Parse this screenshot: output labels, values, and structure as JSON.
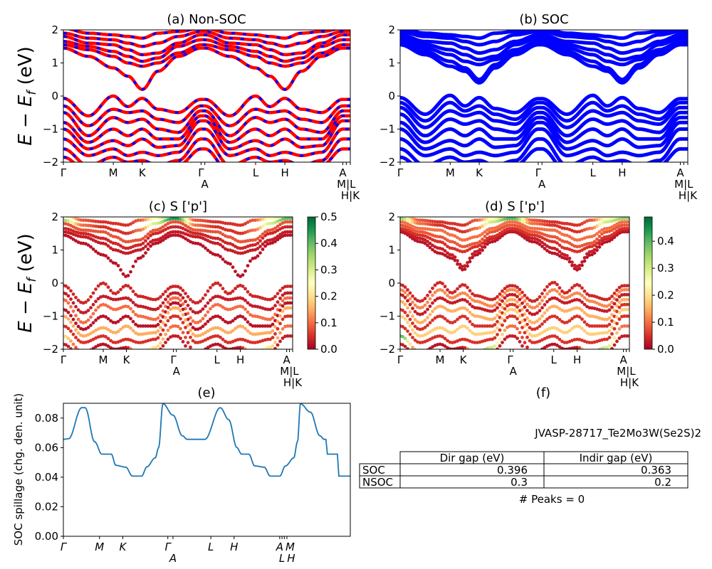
{
  "figure": {
    "ylabel_main": "E − E",
    "ylabel_sub": "f",
    "ylabel_unit": " (eV)",
    "band_line_colors": {
      "nonsoc_solid": "#ff0000",
      "nonsoc_dash": "#0000ff",
      "soc": "#0000ff"
    },
    "spillage_color": "#1f77b4",
    "colormap": "RdYlGn"
  },
  "table_panel": {
    "title": "(f)",
    "material": "JVASP-28717_Te2Mo3W(Se2S)2",
    "columns": [
      "",
      "Dir gap (eV)",
      "Indir gap (eV)"
    ],
    "rows": [
      {
        "label": "SOC",
        "dir_gap": "0.396",
        "indir_gap": "0.363"
      },
      {
        "label": "NSOC",
        "dir_gap": "0.3",
        "indir_gap": "0.2"
      }
    ],
    "peaks_text": "# Peaks = 0"
  },
  "chart_data": [
    {
      "id": "a",
      "type": "line",
      "title": "(a) Non-SOC",
      "ylabel": "E − E_f (eV)",
      "ylim": [
        -2,
        2
      ],
      "yticks": [
        2,
        1,
        0,
        -1,
        -2
      ],
      "ytick_labels": [
        "2",
        "1",
        "0",
        "−1",
        "−2"
      ],
      "xtick_positions": [
        0,
        0.174,
        0.275,
        0.48,
        0.493,
        0.67,
        0.772,
        0.974,
        0.986,
        1.0
      ],
      "xtick_labels": [
        "Γ",
        "M",
        "K",
        "Γ",
        "A",
        "L",
        "H",
        "A",
        "M|L",
        "H|K"
      ],
      "k": [
        0,
        0.087,
        0.174,
        0.225,
        0.275,
        0.33,
        0.4,
        0.48,
        0.493,
        0.58,
        0.67,
        0.72,
        0.772,
        0.83,
        0.9,
        0.974,
        1.0
      ],
      "bands": [
        [
          1.45,
          1.2,
          0.85,
          0.6,
          0.2,
          0.75,
          1.2,
          1.45,
          1.45,
          1.2,
          0.85,
          0.6,
          0.2,
          0.75,
          1.2,
          1.45,
          1.45
        ],
        [
          1.55,
          1.4,
          1.2,
          1.0,
          0.9,
          1.0,
          1.3,
          1.55,
          1.55,
          1.4,
          1.2,
          1.0,
          0.9,
          1.0,
          1.3,
          1.55,
          1.55
        ],
        [
          1.65,
          1.5,
          1.35,
          1.2,
          1.05,
          1.15,
          1.5,
          1.7,
          1.7,
          1.5,
          1.35,
          1.2,
          1.05,
          1.15,
          1.5,
          1.7,
          1.7
        ],
        [
          1.8,
          1.6,
          1.55,
          1.4,
          1.25,
          1.3,
          1.6,
          1.85,
          1.85,
          1.6,
          1.55,
          1.4,
          1.25,
          1.3,
          1.6,
          1.85,
          1.85
        ],
        [
          1.9,
          1.75,
          1.7,
          1.6,
          1.5,
          1.6,
          1.8,
          1.95,
          1.95,
          1.75,
          1.7,
          1.6,
          1.5,
          1.6,
          1.8,
          1.95,
          1.95
        ],
        [
          2.05,
          1.9,
          1.85,
          1.8,
          1.75,
          1.9,
          1.95,
          2.05,
          2.05,
          1.9,
          1.85,
          1.8,
          1.75,
          1.9,
          1.95,
          2.05,
          2.05
        ],
        [
          -0.07,
          -0.6,
          0.0,
          -0.32,
          -0.07,
          -0.4,
          -0.5,
          -0.1,
          -0.1,
          -0.6,
          0.0,
          -0.32,
          -0.07,
          -0.4,
          -0.5,
          -0.1,
          -0.1
        ],
        [
          -0.3,
          -0.9,
          -0.4,
          -0.5,
          -0.45,
          -0.7,
          -0.8,
          -0.3,
          -0.3,
          -0.9,
          -0.4,
          -0.5,
          -0.45,
          -0.7,
          -0.8,
          -0.3,
          -0.3
        ],
        [
          -0.5,
          -1.2,
          -0.65,
          -0.8,
          -0.7,
          -1.0,
          -1.1,
          -0.45,
          -0.45,
          -1.2,
          -0.65,
          -0.8,
          -0.7,
          -1.0,
          -1.1,
          -0.45,
          -0.45
        ],
        [
          -0.8,
          -1.4,
          -1.0,
          -1.2,
          -1.0,
          -1.3,
          -1.3,
          -0.6,
          -0.6,
          -1.4,
          -1.0,
          -1.2,
          -1.0,
          -1.3,
          -1.3,
          -0.6,
          -0.6
        ],
        [
          -1.0,
          -1.6,
          -1.35,
          -1.5,
          -1.3,
          -1.55,
          -1.5,
          -0.75,
          -0.75,
          -1.6,
          -1.35,
          -1.5,
          -1.3,
          -1.55,
          -1.5,
          -0.75,
          -0.75
        ],
        [
          -1.3,
          -1.8,
          -1.6,
          -1.8,
          -1.7,
          -1.8,
          -1.7,
          -1.0,
          -1.0,
          -1.8,
          -1.6,
          -1.8,
          -1.7,
          -1.8,
          -1.7,
          -1.0,
          -1.0
        ],
        [
          -1.6,
          -2.1,
          -1.85,
          -2.0,
          -1.95,
          -2.1,
          -1.95,
          -1.3,
          -1.3,
          -2.1,
          -1.85,
          -2.0,
          -1.95,
          -2.1,
          -1.95,
          -1.3,
          -1.3
        ],
        [
          -1.85,
          -2.3,
          -2.1,
          -2.2,
          -2.2,
          -2.3,
          -2.1,
          -1.6,
          -1.6,
          -2.3,
          -2.1,
          -2.2,
          -2.2,
          -2.3,
          -2.1,
          -1.6,
          -1.6
        ]
      ]
    },
    {
      "id": "b",
      "type": "line",
      "title": "(b) SOC",
      "ylim": [
        -2,
        2
      ],
      "yticks": [
        2,
        1,
        0,
        -1,
        -2
      ],
      "ytick_labels": [
        "2",
        "1",
        "0",
        "−1",
        "−2"
      ],
      "xtick_positions": [
        0,
        0.174,
        0.275,
        0.48,
        0.493,
        0.67,
        0.772,
        0.974,
        0.986,
        1.0
      ],
      "xtick_labels": [
        "Γ",
        "M",
        "K",
        "Γ",
        "A",
        "L",
        "H",
        "A",
        "M|L",
        "H|K"
      ],
      "k": [
        0,
        0.087,
        0.174,
        0.225,
        0.275,
        0.33,
        0.4,
        0.48,
        0.493,
        0.58,
        0.67,
        0.72,
        0.772,
        0.83,
        0.9,
        0.974,
        1.0
      ],
      "bands": [
        [
          1.55,
          1.25,
          0.9,
          0.75,
          0.4,
          0.85,
          1.25,
          1.55,
          1.55,
          1.25,
          0.9,
          0.75,
          0.4,
          0.85,
          1.25,
          1.55,
          1.55
        ],
        [
          1.6,
          1.35,
          1.05,
          0.85,
          0.5,
          0.95,
          1.35,
          1.6,
          1.6,
          1.35,
          1.05,
          0.85,
          0.5,
          0.95,
          1.35,
          1.6,
          1.6
        ],
        [
          1.65,
          1.45,
          1.25,
          1.05,
          0.95,
          1.1,
          1.4,
          1.65,
          1.65,
          1.45,
          1.25,
          1.05,
          0.95,
          1.1,
          1.4,
          1.65,
          1.65
        ],
        [
          1.75,
          1.55,
          1.4,
          1.25,
          1.1,
          1.2,
          1.55,
          1.75,
          1.75,
          1.55,
          1.4,
          1.25,
          1.1,
          1.2,
          1.55,
          1.75,
          1.75
        ],
        [
          1.85,
          1.65,
          1.6,
          1.45,
          1.3,
          1.4,
          1.65,
          1.85,
          1.85,
          1.65,
          1.6,
          1.45,
          1.3,
          1.4,
          1.65,
          1.85,
          1.85
        ],
        [
          1.95,
          1.8,
          1.75,
          1.65,
          1.55,
          1.65,
          1.85,
          1.95,
          1.95,
          1.8,
          1.75,
          1.65,
          1.55,
          1.65,
          1.85,
          1.95,
          1.95
        ],
        [
          2.05,
          1.9,
          1.85,
          1.8,
          1.75,
          1.9,
          1.95,
          2.05,
          2.05,
          1.9,
          1.85,
          1.8,
          1.75,
          1.9,
          1.95,
          2.05,
          2.05
        ],
        [
          -0.05,
          -0.55,
          0.02,
          -0.3,
          -0.05,
          -0.38,
          -0.5,
          -0.08,
          -0.08,
          -0.55,
          0.02,
          -0.3,
          -0.05,
          -0.38,
          -0.5,
          -0.08,
          -0.08
        ],
        [
          -0.2,
          -0.75,
          -0.2,
          -0.45,
          -0.3,
          -0.55,
          -0.7,
          -0.2,
          -0.2,
          -0.75,
          -0.2,
          -0.45,
          -0.3,
          -0.55,
          -0.7,
          -0.2,
          -0.2
        ],
        [
          -0.35,
          -0.95,
          -0.45,
          -0.6,
          -0.5,
          -0.75,
          -0.85,
          -0.35,
          -0.35,
          -0.95,
          -0.45,
          -0.6,
          -0.5,
          -0.75,
          -0.85,
          -0.35,
          -0.35
        ],
        [
          -0.55,
          -1.2,
          -0.7,
          -0.85,
          -0.75,
          -1.0,
          -1.1,
          -0.5,
          -0.5,
          -1.2,
          -0.7,
          -0.85,
          -0.75,
          -1.0,
          -1.1,
          -0.5,
          -0.5
        ],
        [
          -0.8,
          -1.4,
          -1.0,
          -1.2,
          -1.0,
          -1.3,
          -1.3,
          -0.65,
          -0.65,
          -1.4,
          -1.0,
          -1.2,
          -1.0,
          -1.3,
          -1.3,
          -0.65,
          -0.65
        ],
        [
          -1.0,
          -1.6,
          -1.35,
          -1.5,
          -1.3,
          -1.55,
          -1.5,
          -0.8,
          -0.8,
          -1.6,
          -1.35,
          -1.5,
          -1.3,
          -1.55,
          -1.5,
          -0.8,
          -0.8
        ],
        [
          -1.3,
          -1.8,
          -1.6,
          -1.8,
          -1.7,
          -1.8,
          -1.7,
          -1.0,
          -1.0,
          -1.8,
          -1.6,
          -1.8,
          -1.7,
          -1.8,
          -1.7,
          -1.0,
          -1.0
        ],
        [
          -1.6,
          -2.1,
          -1.85,
          -2.0,
          -1.95,
          -2.1,
          -1.95,
          -1.3,
          -1.3,
          -2.1,
          -1.85,
          -2.0,
          -1.95,
          -2.1,
          -1.95,
          -1.3,
          -1.3
        ],
        [
          -1.85,
          -2.3,
          -2.1,
          -2.2,
          -2.2,
          -2.3,
          -2.1,
          -1.6,
          -1.6,
          -2.3,
          -2.1,
          -2.2,
          -2.2,
          -2.3,
          -2.1,
          -1.6,
          -1.6
        ]
      ]
    },
    {
      "id": "c",
      "type": "scatter",
      "title": "(c)  S ['p']",
      "ylim": [
        -2,
        2
      ],
      "yticks": [
        2,
        1,
        0,
        -1,
        -2
      ],
      "ytick_labels": [
        "2",
        "1",
        "0",
        "−1",
        "−2"
      ],
      "xtick_positions": [
        0,
        0.174,
        0.275,
        0.48,
        0.493,
        0.67,
        0.772,
        0.974,
        0.986,
        1.0
      ],
      "xtick_labels": [
        "Γ",
        "M",
        "K",
        "Γ",
        "A",
        "L",
        "H",
        "A",
        "M|L",
        "H|K"
      ],
      "colorbar": {
        "vmin": 0.0,
        "vmax": 0.5,
        "ticks": [
          0.0,
          0.1,
          0.2,
          0.3,
          0.4,
          0.5
        ],
        "tick_labels": [
          "0.0",
          "0.1",
          "0.2",
          "0.3",
          "0.4",
          "0.5"
        ]
      },
      "weights": [
        0.02,
        0.03,
        0.04,
        0.08,
        [
          0.35,
          0.1,
          0.05,
          0.05,
          0.05,
          0.1,
          0.3,
          0.45,
          0.45,
          0.1,
          0.05,
          0.05,
          0.05,
          0.1,
          0.3,
          0.4,
          0.4
        ],
        [
          0.3,
          0.08,
          0.05,
          0.05,
          0.05,
          0.08,
          0.25,
          0.45,
          0.45,
          0.08,
          0.05,
          0.05,
          0.05,
          0.08,
          0.25,
          0.35,
          0.35
        ],
        0.04,
        0.03,
        0.1,
        0.02,
        0.15,
        0.05,
        [
          0.2,
          0.02,
          0.02,
          0.02,
          0.02,
          0.4,
          0.2,
          0.1,
          0.1,
          0.02,
          0.02,
          0.02,
          0.02,
          0.4,
          0.2,
          0.1,
          0.1
        ],
        0.03
      ]
    },
    {
      "id": "d",
      "type": "scatter",
      "title": "(d) S ['p']",
      "ylim": [
        -2,
        2
      ],
      "yticks": [
        2,
        1,
        0,
        -1,
        -2
      ],
      "ytick_labels": [
        "2",
        "1",
        "0",
        "−1",
        "−2"
      ],
      "xtick_positions": [
        0,
        0.174,
        0.275,
        0.48,
        0.493,
        0.67,
        0.772,
        0.974,
        0.986,
        1.0
      ],
      "xtick_labels": [
        "Γ",
        "M",
        "K",
        "Γ",
        "A",
        "L",
        "H",
        "A",
        "M|L",
        "H|K"
      ],
      "colorbar": {
        "vmin": 0.0,
        "vmax": 0.49,
        "ticks": [
          0.0,
          0.1,
          0.2,
          0.3,
          0.4
        ],
        "tick_labels": [
          "0.0",
          "0.1",
          "0.2",
          "0.3",
          "0.4"
        ]
      },
      "weights": [
        0.02,
        0.03,
        0.05,
        0.08,
        0.1,
        [
          0.35,
          0.1,
          0.05,
          0.05,
          0.05,
          0.1,
          0.3,
          0.4,
          0.4,
          0.1,
          0.05,
          0.05,
          0.05,
          0.1,
          0.3,
          0.35,
          0.35
        ],
        [
          0.3,
          0.08,
          0.05,
          0.05,
          0.05,
          0.08,
          0.25,
          0.4,
          0.4,
          0.08,
          0.05,
          0.05,
          0.05,
          0.08,
          0.25,
          0.3,
          0.3
        ],
        0.04,
        0.12,
        0.03,
        0.15,
        0.05,
        0.18,
        0.05,
        [
          0.4,
          0.02,
          0.02,
          0.02,
          0.02,
          0.45,
          0.3,
          0.1,
          0.1,
          0.02,
          0.02,
          0.02,
          0.02,
          0.45,
          0.3,
          0.1,
          0.1
        ],
        0.03
      ]
    },
    {
      "id": "e",
      "type": "line",
      "title": "(e)",
      "ylabel": "SOC spillage (chg. den. unit)",
      "ylim": [
        0,
        0.09
      ],
      "yticks": [
        0.0,
        0.02,
        0.04,
        0.06,
        0.08
      ],
      "ytick_labels": [
        "0.00",
        "0.02",
        "0.04",
        "0.06",
        "0.08"
      ],
      "xtick_positions": [
        0,
        0.126,
        0.207,
        0.364,
        0.382,
        0.514,
        0.595,
        0.754,
        0.762,
        0.77,
        0.779
      ],
      "xtick_labels": [
        "Γ",
        "M",
        "K",
        "Γ",
        "A",
        "L",
        "H",
        "A",
        "L",
        "M",
        "H"
      ],
      "x": [
        0,
        0.018,
        0.064,
        0.076,
        0.109,
        0.134,
        0.167,
        0.183,
        0.217,
        0.241,
        0.273,
        0.291,
        0.32,
        0.332,
        0.347,
        0.382,
        0.415,
        0.431,
        0.493,
        0.547,
        0.576,
        0.605,
        0.621,
        0.646,
        0.667,
        0.7,
        0.721,
        0.754,
        0.774,
        0.803,
        0.816,
        0.826,
        0.861,
        0.894,
        0.909,
        0.916,
        0.919,
        0.955,
        0.96,
        1.0
      ],
      "y": [
        0.0656,
        0.066,
        0.087,
        0.087,
        0.064,
        0.0556,
        0.0556,
        0.048,
        0.0468,
        0.0407,
        0.0407,
        0.047,
        0.053,
        0.06,
        0.0897,
        0.082,
        0.068,
        0.0656,
        0.0656,
        0.087,
        0.079,
        0.06,
        0.0556,
        0.0556,
        0.0476,
        0.0468,
        0.0407,
        0.0407,
        0.0476,
        0.053,
        0.064,
        0.0897,
        0.084,
        0.068,
        0.0656,
        0.0656,
        0.0556,
        0.0556,
        0.0407,
        0.0407
      ]
    }
  ]
}
